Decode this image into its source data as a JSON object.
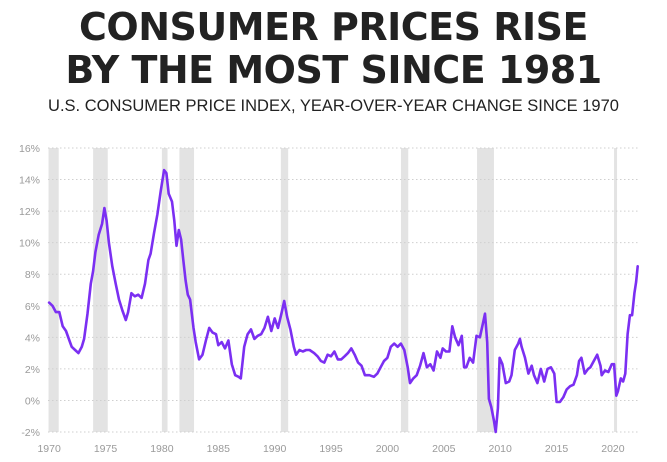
{
  "header": {
    "title_line1": "CONSUMER PRICES RISE",
    "title_line2": "BY THE MOST SINCE 1981",
    "subtitle": "U.S. CONSUMER PRICE INDEX, YEAR-OVER-YEAR CHANGE SINCE 1970"
  },
  "chart_data": {
    "type": "line",
    "title": "CONSUMER PRICES RISE BY THE MOST SINCE 1981",
    "subtitle": "U.S. CONSUMER PRICE INDEX, YEAR-OVER-YEAR CHANGE SINCE 1970",
    "xlabel": "",
    "ylabel": "",
    "xlim": [
      1969.9,
      2022.4
    ],
    "ylim": [
      -2,
      16
    ],
    "x_ticks": [
      1970,
      1975,
      1980,
      1985,
      1990,
      1995,
      2000,
      2005,
      2010,
      2015,
      2020
    ],
    "x_tick_labels": [
      "1970",
      "1975",
      "1980",
      "1985",
      "1990",
      "1995",
      "2000",
      "2005",
      "2010",
      "2015",
      "2020"
    ],
    "y_ticks": [
      -2,
      0,
      2,
      4,
      6,
      8,
      10,
      12,
      14,
      16
    ],
    "y_tick_labels": [
      "-2%",
      "0%",
      "2%",
      "4%",
      "6%",
      "8%",
      "10%",
      "12%",
      "14%",
      "16%"
    ],
    "grid": "horizontal",
    "line_color": "#7b2ff2",
    "recession_color": "#e3e3e3",
    "recessions": [
      [
        1969.95,
        1970.85
      ],
      [
        1973.9,
        1975.2
      ],
      [
        1980.0,
        1980.5
      ],
      [
        1981.55,
        1982.85
      ],
      [
        1990.55,
        1991.2
      ],
      [
        2001.2,
        2001.85
      ],
      [
        2007.95,
        2009.45
      ],
      [
        2020.1,
        2020.35
      ]
    ],
    "series": [
      {
        "values": [
          [
            1970.0,
            6.2
          ],
          [
            1970.3,
            6.0
          ],
          [
            1970.6,
            5.6
          ],
          [
            1970.9,
            5.6
          ],
          [
            1971.2,
            4.7
          ],
          [
            1971.5,
            4.4
          ],
          [
            1971.8,
            3.8
          ],
          [
            1972.0,
            3.4
          ],
          [
            1972.3,
            3.2
          ],
          [
            1972.6,
            3.0
          ],
          [
            1972.9,
            3.4
          ],
          [
            1973.1,
            3.9
          ],
          [
            1973.4,
            5.5
          ],
          [
            1973.7,
            7.4
          ],
          [
            1973.9,
            8.2
          ],
          [
            1974.1,
            9.4
          ],
          [
            1974.4,
            10.5
          ],
          [
            1974.7,
            11.2
          ],
          [
            1974.9,
            12.2
          ],
          [
            1975.1,
            11.4
          ],
          [
            1975.3,
            10.0
          ],
          [
            1975.6,
            8.5
          ],
          [
            1975.9,
            7.4
          ],
          [
            1976.2,
            6.4
          ],
          [
            1976.5,
            5.7
          ],
          [
            1976.8,
            5.1
          ],
          [
            1977.0,
            5.6
          ],
          [
            1977.3,
            6.8
          ],
          [
            1977.6,
            6.6
          ],
          [
            1977.9,
            6.7
          ],
          [
            1978.2,
            6.5
          ],
          [
            1978.5,
            7.4
          ],
          [
            1978.8,
            8.9
          ],
          [
            1979.0,
            9.3
          ],
          [
            1979.3,
            10.6
          ],
          [
            1979.6,
            11.8
          ],
          [
            1979.9,
            13.3
          ],
          [
            1980.2,
            14.6
          ],
          [
            1980.4,
            14.4
          ],
          [
            1980.6,
            13.1
          ],
          [
            1980.9,
            12.6
          ],
          [
            1981.1,
            11.4
          ],
          [
            1981.3,
            9.8
          ],
          [
            1981.5,
            10.8
          ],
          [
            1981.7,
            10.2
          ],
          [
            1981.9,
            8.9
          ],
          [
            1982.1,
            7.6
          ],
          [
            1982.3,
            6.7
          ],
          [
            1982.5,
            6.4
          ],
          [
            1982.8,
            4.6
          ],
          [
            1983.0,
            3.7
          ],
          [
            1983.3,
            2.6
          ],
          [
            1983.6,
            2.9
          ],
          [
            1983.9,
            3.8
          ],
          [
            1984.2,
            4.6
          ],
          [
            1984.5,
            4.3
          ],
          [
            1984.8,
            4.2
          ],
          [
            1985.0,
            3.5
          ],
          [
            1985.3,
            3.7
          ],
          [
            1985.6,
            3.3
          ],
          [
            1985.9,
            3.8
          ],
          [
            1986.2,
            2.3
          ],
          [
            1986.5,
            1.6
          ],
          [
            1986.8,
            1.5
          ],
          [
            1987.0,
            1.4
          ],
          [
            1987.3,
            3.4
          ],
          [
            1987.6,
            4.2
          ],
          [
            1987.9,
            4.5
          ],
          [
            1988.2,
            3.9
          ],
          [
            1988.5,
            4.1
          ],
          [
            1988.8,
            4.2
          ],
          [
            1989.1,
            4.6
          ],
          [
            1989.4,
            5.3
          ],
          [
            1989.7,
            4.4
          ],
          [
            1990.0,
            5.2
          ],
          [
            1990.3,
            4.6
          ],
          [
            1990.6,
            5.5
          ],
          [
            1990.85,
            6.3
          ],
          [
            1991.1,
            5.3
          ],
          [
            1991.4,
            4.5
          ],
          [
            1991.7,
            3.4
          ],
          [
            1991.9,
            2.9
          ],
          [
            1992.2,
            3.2
          ],
          [
            1992.5,
            3.1
          ],
          [
            1992.8,
            3.2
          ],
          [
            1993.1,
            3.2
          ],
          [
            1993.5,
            3.0
          ],
          [
            1993.8,
            2.8
          ],
          [
            1994.1,
            2.5
          ],
          [
            1994.4,
            2.4
          ],
          [
            1994.7,
            2.9
          ],
          [
            1995.0,
            2.8
          ],
          [
            1995.3,
            3.1
          ],
          [
            1995.6,
            2.6
          ],
          [
            1995.9,
            2.6
          ],
          [
            1996.2,
            2.8
          ],
          [
            1996.5,
            3.0
          ],
          [
            1996.8,
            3.3
          ],
          [
            1997.1,
            2.9
          ],
          [
            1997.4,
            2.4
          ],
          [
            1997.7,
            2.2
          ],
          [
            1998.0,
            1.6
          ],
          [
            1998.4,
            1.6
          ],
          [
            1998.8,
            1.5
          ],
          [
            1999.1,
            1.7
          ],
          [
            1999.4,
            2.1
          ],
          [
            1999.7,
            2.5
          ],
          [
            2000.0,
            2.7
          ],
          [
            2000.3,
            3.4
          ],
          [
            2000.6,
            3.6
          ],
          [
            2000.9,
            3.4
          ],
          [
            2001.2,
            3.6
          ],
          [
            2001.5,
            3.2
          ],
          [
            2001.8,
            2.1
          ],
          [
            2002.0,
            1.1
          ],
          [
            2002.3,
            1.4
          ],
          [
            2002.6,
            1.6
          ],
          [
            2002.9,
            2.2
          ],
          [
            2003.2,
            3.0
          ],
          [
            2003.5,
            2.1
          ],
          [
            2003.8,
            2.3
          ],
          [
            2004.1,
            1.9
          ],
          [
            2004.4,
            3.1
          ],
          [
            2004.7,
            2.7
          ],
          [
            2004.9,
            3.3
          ],
          [
            2005.2,
            3.1
          ],
          [
            2005.5,
            3.1
          ],
          [
            2005.75,
            4.7
          ],
          [
            2006.0,
            4.0
          ],
          [
            2006.3,
            3.5
          ],
          [
            2006.6,
            4.1
          ],
          [
            2006.8,
            2.1
          ],
          [
            2007.0,
            2.1
          ],
          [
            2007.3,
            2.7
          ],
          [
            2007.6,
            2.4
          ],
          [
            2007.9,
            4.1
          ],
          [
            2008.2,
            4.0
          ],
          [
            2008.5,
            5.0
          ],
          [
            2008.65,
            5.5
          ],
          [
            2008.85,
            3.7
          ],
          [
            2009.0,
            0.1
          ],
          [
            2009.2,
            -0.4
          ],
          [
            2009.45,
            -1.3
          ],
          [
            2009.6,
            -2.0
          ],
          [
            2009.8,
            -0.5
          ],
          [
            2009.95,
            2.7
          ],
          [
            2010.2,
            2.3
          ],
          [
            2010.5,
            1.1
          ],
          [
            2010.8,
            1.2
          ],
          [
            2011.0,
            1.6
          ],
          [
            2011.3,
            3.2
          ],
          [
            2011.6,
            3.6
          ],
          [
            2011.75,
            3.9
          ],
          [
            2011.9,
            3.4
          ],
          [
            2012.2,
            2.7
          ],
          [
            2012.5,
            1.7
          ],
          [
            2012.8,
            2.2
          ],
          [
            2013.0,
            1.6
          ],
          [
            2013.3,
            1.1
          ],
          [
            2013.6,
            2.0
          ],
          [
            2013.9,
            1.2
          ],
          [
            2014.2,
            2.0
          ],
          [
            2014.5,
            2.1
          ],
          [
            2014.8,
            1.7
          ],
          [
            2015.0,
            -0.1
          ],
          [
            2015.3,
            -0.1
          ],
          [
            2015.6,
            0.2
          ],
          [
            2015.9,
            0.7
          ],
          [
            2016.2,
            0.9
          ],
          [
            2016.5,
            1.0
          ],
          [
            2016.8,
            1.6
          ],
          [
            2017.0,
            2.5
          ],
          [
            2017.2,
            2.7
          ],
          [
            2017.5,
            1.7
          ],
          [
            2017.8,
            2.0
          ],
          [
            2018.0,
            2.1
          ],
          [
            2018.3,
            2.5
          ],
          [
            2018.6,
            2.9
          ],
          [
            2018.9,
            2.2
          ],
          [
            2019.0,
            1.6
          ],
          [
            2019.3,
            1.9
          ],
          [
            2019.6,
            1.8
          ],
          [
            2019.9,
            2.3
          ],
          [
            2020.1,
            2.3
          ],
          [
            2020.3,
            0.3
          ],
          [
            2020.45,
            0.6
          ],
          [
            2020.7,
            1.4
          ],
          [
            2020.9,
            1.2
          ],
          [
            2021.1,
            1.7
          ],
          [
            2021.3,
            4.2
          ],
          [
            2021.5,
            5.4
          ],
          [
            2021.7,
            5.4
          ],
          [
            2021.9,
            6.8
          ],
          [
            2022.05,
            7.5
          ],
          [
            2022.2,
            8.5
          ]
        ]
      }
    ]
  }
}
